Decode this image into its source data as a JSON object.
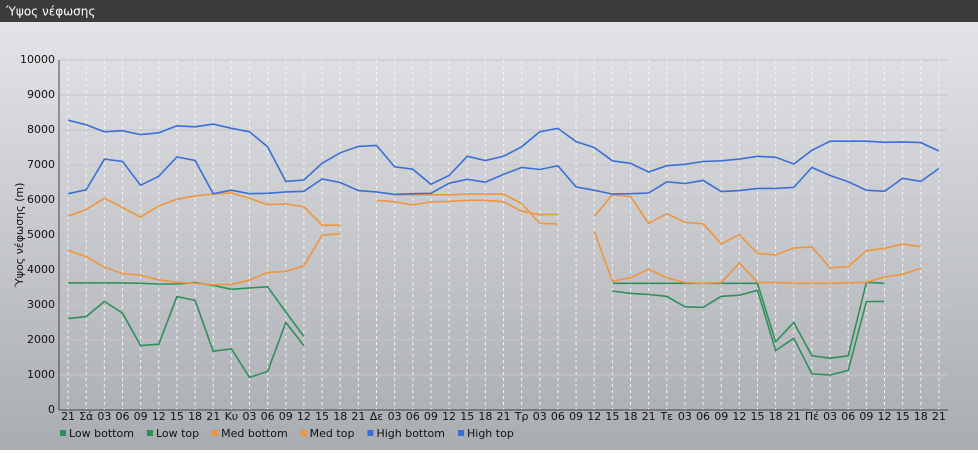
{
  "chart_data": {
    "type": "line",
    "title": "Ύψος νέφωσης",
    "ylabel": "Ύψος νέφωσης (m)",
    "categories": [
      "21",
      "Σά",
      "03",
      "06",
      "09",
      "12",
      "15",
      "18",
      "21",
      "Κυ",
      "03",
      "06",
      "09",
      "12",
      "15",
      "18",
      "21",
      "Δε",
      "03",
      "06",
      "09",
      "12",
      "15",
      "18",
      "21",
      "Τρ",
      "03",
      "06",
      "09",
      "12",
      "15",
      "18",
      "21",
      "Τε",
      "03",
      "06",
      "09",
      "12",
      "15",
      "18",
      "21",
      "Πέ",
      "03",
      "06",
      "09",
      "12",
      "15",
      "18",
      "21"
    ],
    "ylim": [
      0,
      10000
    ],
    "yticks": [
      0,
      1000,
      2000,
      3000,
      4000,
      5000,
      6000,
      7000,
      8000,
      9000,
      10000
    ],
    "grid": true,
    "series": [
      {
        "name": "Low bottom",
        "color": "#2f8f5a",
        "values": [
          2610,
          2670,
          3100,
          2770,
          1840,
          1880,
          3240,
          3130,
          1680,
          1750,
          930,
          1100,
          2500,
          1840,
          null,
          null,
          null,
          null,
          null,
          null,
          null,
          null,
          null,
          null,
          null,
          null,
          null,
          null,
          null,
          null,
          3400,
          3330,
          3300,
          3250,
          2950,
          2930,
          3250,
          3280,
          3420,
          1700,
          2050,
          1030,
          1000,
          1130,
          3100,
          3100,
          null,
          null,
          null
        ]
      },
      {
        "name": "Low top",
        "color": "#2f8f5a",
        "values": [
          3630,
          3630,
          3630,
          3630,
          3620,
          3600,
          3600,
          3640,
          3560,
          3450,
          3490,
          3520,
          2800,
          2100,
          null,
          null,
          null,
          null,
          null,
          null,
          null,
          null,
          null,
          null,
          null,
          null,
          null,
          null,
          null,
          null,
          3620,
          3620,
          3620,
          3620,
          3620,
          3620,
          3620,
          3620,
          3620,
          1950,
          2500,
          1550,
          1480,
          1550,
          3650,
          3620,
          null,
          null,
          null
        ]
      },
      {
        "name": "Med bottom",
        "color": "#f0953c",
        "values": [
          4560,
          4380,
          4080,
          3900,
          3850,
          3720,
          3650,
          3620,
          3580,
          3590,
          3710,
          3930,
          3960,
          4120,
          5000,
          5030,
          null,
          null,
          6150,
          6150,
          6150,
          6150,
          6170,
          6170,
          6170,
          5900,
          5330,
          5310,
          null,
          5110,
          3680,
          3780,
          4020,
          3780,
          3640,
          3620,
          3640,
          4200,
          3640,
          3640,
          3620,
          3620,
          3620,
          3630,
          3650,
          3800,
          3880,
          4050,
          null
        ]
      },
      {
        "name": "Med top",
        "color": "#f0953c",
        "values": [
          5540,
          5730,
          6050,
          5790,
          5510,
          5830,
          6020,
          6120,
          6170,
          6200,
          6050,
          5870,
          5890,
          5810,
          5280,
          5280,
          null,
          5990,
          5950,
          5860,
          5950,
          5960,
          5990,
          5990,
          5950,
          5680,
          5580,
          5590,
          null,
          5530,
          6150,
          6100,
          5330,
          5610,
          5360,
          5320,
          4750,
          5010,
          4470,
          4430,
          4630,
          4660,
          4060,
          4100,
          4550,
          4620,
          4740,
          4670,
          null
        ]
      },
      {
        "name": "High bottom",
        "color": "#3a6fd6",
        "values": [
          6180,
          6290,
          7170,
          7100,
          6420,
          6680,
          7230,
          7130,
          6180,
          6280,
          6180,
          6190,
          6230,
          6250,
          6600,
          6500,
          6270,
          6230,
          6160,
          6180,
          6190,
          6480,
          6590,
          6510,
          6730,
          6930,
          6870,
          6980,
          6370,
          6280,
          6170,
          6180,
          6200,
          6520,
          6470,
          6560,
          6240,
          6270,
          6330,
          6330,
          6360,
          6930,
          6700,
          6520,
          6280,
          6250,
          6620,
          6530,
          6900
        ]
      },
      {
        "name": "High top",
        "color": "#3a6fd6",
        "values": [
          8280,
          8150,
          7950,
          7980,
          7870,
          7920,
          8120,
          8090,
          8170,
          8050,
          7950,
          7520,
          6530,
          6570,
          7050,
          7350,
          7530,
          7560,
          6950,
          6880,
          6450,
          6700,
          7250,
          7130,
          7250,
          7520,
          7950,
          8050,
          7670,
          7500,
          7120,
          7050,
          6800,
          6980,
          7020,
          7100,
          7120,
          7170,
          7250,
          7220,
          7030,
          7420,
          7680,
          7680,
          7680,
          7650,
          7660,
          7640,
          7400
        ]
      }
    ]
  }
}
